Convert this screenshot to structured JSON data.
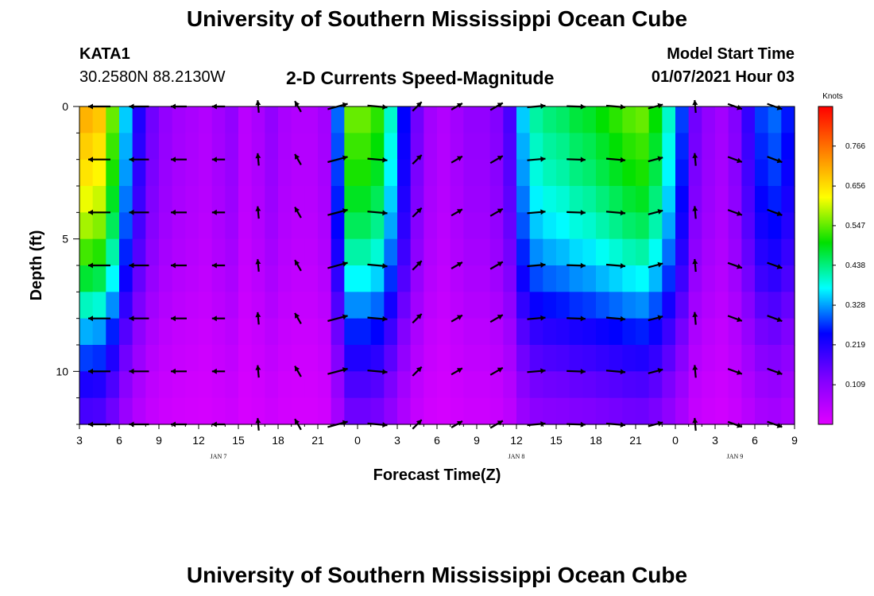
{
  "header": {
    "title": "University of Southern Mississippi Ocean Cube",
    "station": "KATA1",
    "coordinates": "30.2580N 88.2130W",
    "subtitle": "2-D Currents Speed-Magnitude",
    "model_start_label": "Model Start Time",
    "model_start_value": "01/07/2021 Hour 03"
  },
  "footer": {
    "title": "University of Southern Mississippi Ocean Cube"
  },
  "chart_data": {
    "type": "heatmap",
    "title": "2-D Currents Speed-Magnitude",
    "xlabel": "Forecast Time(Z)",
    "ylabel": "Depth (ft)",
    "x_ticks": [
      "3",
      "6",
      "9",
      "12",
      "15",
      "18",
      "21",
      "0",
      "3",
      "6",
      "9",
      "12",
      "15",
      "18",
      "21",
      "0",
      "3",
      "6",
      "9"
    ],
    "x_hours": [
      0,
      3,
      6,
      9,
      12,
      15,
      18,
      21,
      24,
      27,
      30,
      33,
      36,
      39,
      42,
      45,
      48,
      51,
      54
    ],
    "day_labels": [
      {
        "label": "JAN 7",
        "hour": 10.5
      },
      {
        "label": "JAN 8",
        "hour": 33
      },
      {
        "label": "JAN 9",
        "hour": 49.5
      }
    ],
    "xlim_hours": [
      0,
      54
    ],
    "y_ticks": [
      "0",
      "5",
      "10"
    ],
    "y_tick_values": [
      0,
      5,
      10
    ],
    "ylim": [
      0,
      12
    ],
    "colorbar": {
      "title": "Knots",
      "labels": [
        "0.766",
        "0.656",
        "0.547",
        "0.438",
        "0.328",
        "0.219",
        "0.109"
      ],
      "values": [
        0.766,
        0.656,
        0.547,
        0.438,
        0.328,
        0.219,
        0.109
      ],
      "range": [
        0.0,
        0.875
      ],
      "colors": [
        "#e000ff",
        "#8000ff",
        "#0000ff",
        "#00ffff",
        "#00e000",
        "#ffff00",
        "#ff8000",
        "#ff0000"
      ]
    },
    "grid_hours": [
      0,
      1,
      2,
      3,
      4,
      5,
      6,
      7,
      8,
      9,
      10,
      11,
      12,
      13,
      14,
      15,
      16,
      17,
      18,
      19,
      20,
      21,
      22,
      23,
      24,
      25,
      26,
      27,
      28,
      29,
      30,
      31,
      32,
      33,
      34,
      35,
      36,
      37,
      38,
      39,
      40,
      41,
      42,
      43,
      44,
      45,
      46,
      47,
      48,
      49,
      50,
      51,
      52,
      53,
      54
    ],
    "grid_depths": [
      0,
      1,
      2,
      3,
      4,
      5,
      6,
      7,
      8,
      9,
      10,
      11,
      12
    ],
    "profile_speed_knots": [
      0.7,
      0.68,
      0.55,
      0.35,
      0.22,
      0.14,
      0.1,
      0.08,
      0.07,
      0.06,
      0.08,
      0.1,
      0.05,
      0.07,
      0.1,
      0.07,
      0.06,
      0.06,
      0.08,
      0.3,
      0.55,
      0.55,
      0.52,
      0.4,
      0.25,
      0.14,
      0.08,
      0.06,
      0.08,
      0.1,
      0.1,
      0.12,
      0.18,
      0.35,
      0.42,
      0.44,
      0.45,
      0.47,
      0.48,
      0.5,
      0.52,
      0.54,
      0.55,
      0.5,
      0.4,
      0.28,
      0.14,
      0.1,
      0.08,
      0.12,
      0.2,
      0.28,
      0.3,
      0.26,
      0.24
    ],
    "depth_factor": [
      1.0,
      0.96,
      0.93,
      0.88,
      0.83,
      0.76,
      0.68,
      0.58,
      0.48,
      0.4,
      0.32,
      0.26,
      0.2
    ],
    "vectors": {
      "hours": [
        1.5,
        4.5,
        7.5,
        10.5,
        13.5,
        16.5,
        19.5,
        22.5,
        25.5,
        28.5,
        31.5,
        34.5,
        37.5,
        40.5,
        43.5,
        46.5,
        49.5,
        52.5
      ],
      "depths": [
        0,
        2,
        4,
        6,
        8,
        10,
        12
      ],
      "angles_deg": [
        180,
        180,
        180,
        180,
        95,
        120,
        15,
        -5,
        45,
        30,
        30,
        5,
        -2,
        -5,
        15,
        95,
        -20,
        -20
      ],
      "speed_knots": [
        0.7,
        0.55,
        0.3,
        0.12,
        0.08,
        0.08,
        0.6,
        0.55,
        0.1,
        0.1,
        0.2,
        0.45,
        0.48,
        0.5,
        0.25,
        0.1,
        0.25,
        0.3
      ]
    }
  }
}
